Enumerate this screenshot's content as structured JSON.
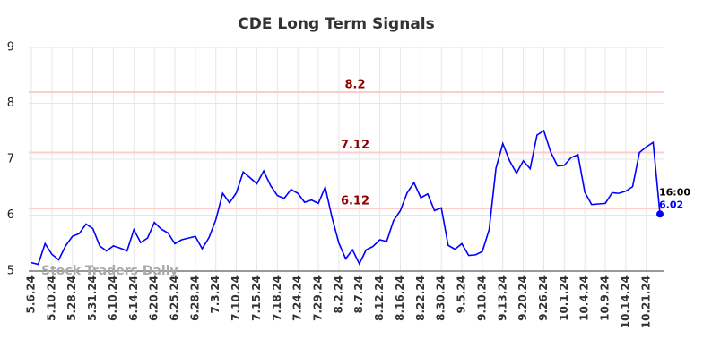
{
  "chart_data": {
    "type": "line",
    "title": "CDE Long Term Signals",
    "watermark": "Stock Traders Daily",
    "categories": [
      "5.6.24",
      null,
      null,
      "5.10.24",
      null,
      null,
      "5.28.24",
      null,
      null,
      "5.31.24",
      null,
      null,
      "6.10.24",
      null,
      null,
      "6.14.24",
      null,
      null,
      "6.20.24",
      null,
      null,
      "6.25.24",
      null,
      null,
      "6.28.24",
      null,
      null,
      "7.3.24",
      null,
      null,
      "7.10.24",
      null,
      null,
      "7.15.24",
      null,
      null,
      "7.18.24",
      null,
      null,
      "7.24.24",
      null,
      null,
      "7.29.24",
      null,
      null,
      "8.2.24",
      null,
      null,
      "8.7.24",
      null,
      null,
      "8.12.24",
      null,
      null,
      "8.16.24",
      null,
      null,
      "8.22.24",
      null,
      null,
      "8.30.24",
      null,
      null,
      "9.5.24",
      null,
      null,
      "9.10.24",
      null,
      null,
      "9.13.24",
      null,
      null,
      "9.20.24",
      null,
      null,
      "9.26.24",
      null,
      null,
      "10.1.24",
      null,
      null,
      "10.4.24",
      null,
      null,
      "10.9.24",
      null,
      null,
      "10.14.24",
      null,
      null,
      "10.21.24",
      null,
      null
    ],
    "series": [
      {
        "color": "#0000ff",
        "values": [
          5.15,
          5.12,
          5.49,
          5.3,
          5.2,
          5.45,
          5.62,
          5.67,
          5.84,
          5.76,
          5.45,
          5.36,
          5.45,
          5.41,
          5.36,
          5.74,
          5.51,
          5.59,
          5.87,
          5.75,
          5.68,
          5.49,
          5.56,
          5.59,
          5.62,
          5.4,
          5.6,
          5.92,
          6.39,
          6.22,
          6.4,
          6.77,
          6.67,
          6.56,
          6.79,
          6.53,
          6.35,
          6.3,
          6.46,
          6.39,
          6.23,
          6.27,
          6.21,
          6.5,
          5.96,
          5.5,
          5.22,
          5.38,
          5.13,
          5.38,
          5.44,
          5.56,
          5.53,
          5.9,
          6.08,
          6.4,
          6.58,
          6.31,
          6.38,
          6.08,
          6.13,
          5.46,
          5.39,
          5.49,
          5.28,
          5.29,
          5.35,
          5.74,
          6.84,
          7.28,
          6.97,
          6.75,
          6.97,
          6.83,
          7.43,
          7.51,
          7.13,
          6.88,
          6.89,
          7.03,
          7.08,
          6.41,
          6.19,
          6.2,
          6.21,
          6.4,
          6.39,
          6.43,
          6.51,
          7.12,
          7.22,
          7.3,
          6.02
        ]
      }
    ],
    "last_point_time": "16:00",
    "reference_lines": [
      8.2,
      7.12,
      6.12
    ],
    "reference_line_color": "#ffcccc",
    "reference_label_color": "#8b0000",
    "ylim": [
      5,
      9
    ],
    "yticks": [
      5,
      6,
      7,
      8,
      9
    ],
    "grid": true
  }
}
